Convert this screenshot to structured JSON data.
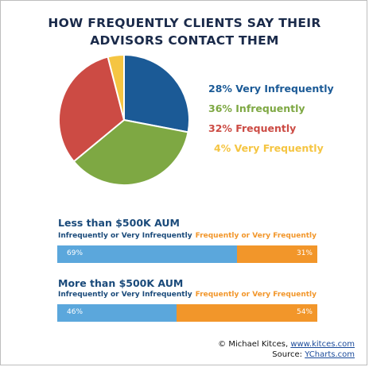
{
  "title_line1": "HOW FREQUENTLY CLIENTS SAY THEIR",
  "title_line2": "ADVISORS CONTACT THEM",
  "colors": {
    "very_infrequently": "#1b5a96",
    "infrequently": "#7ea843",
    "frequently": "#cc4b44",
    "very_frequently": "#f5c542",
    "bar_blue": "#5ba7dc",
    "bar_orange": "#f2962a",
    "navy": "#1a4a7a"
  },
  "chart_data": [
    {
      "type": "pie",
      "title": "HOW FREQUENTLY CLIENTS SAY THEIR ADVISORS CONTACT THEM",
      "slices": [
        {
          "label": "28% Very Infrequently",
          "value": 28,
          "color": "#1b5a96"
        },
        {
          "label": "36% Infrequently",
          "value": 36,
          "color": "#7ea843"
        },
        {
          "label": "32% Frequently",
          "value": 32,
          "color": "#cc4b44"
        },
        {
          "label": "4% Very Frequently",
          "value": 4,
          "color": "#f5c542"
        }
      ],
      "legend": "right"
    },
    {
      "type": "bar",
      "orientation": "horizontal-stacked",
      "title": "Less than $500K AUM",
      "series": [
        {
          "name": "Infrequently or Very Infrequently",
          "value": 69,
          "label": "69%",
          "color": "#5ba7dc"
        },
        {
          "name": "Frequently or Very Frequently",
          "value": 31,
          "label": "31%",
          "color": "#f2962a"
        }
      ]
    },
    {
      "type": "bar",
      "orientation": "horizontal-stacked",
      "title": "More than $500K AUM",
      "series": [
        {
          "name": "Infrequently or Very Infrequently",
          "value": 46,
          "label": "46%",
          "color": "#5ba7dc"
        },
        {
          "name": "Frequently or Very Frequently",
          "value": 54,
          "label": "54%",
          "color": "#f2962a"
        }
      ]
    }
  ],
  "credit": {
    "line1_prefix": "© Michael Kitces, ",
    "line1_link": "www.kitces.com",
    "line2_prefix": "Source: ",
    "line2_link": "YCharts.com"
  }
}
